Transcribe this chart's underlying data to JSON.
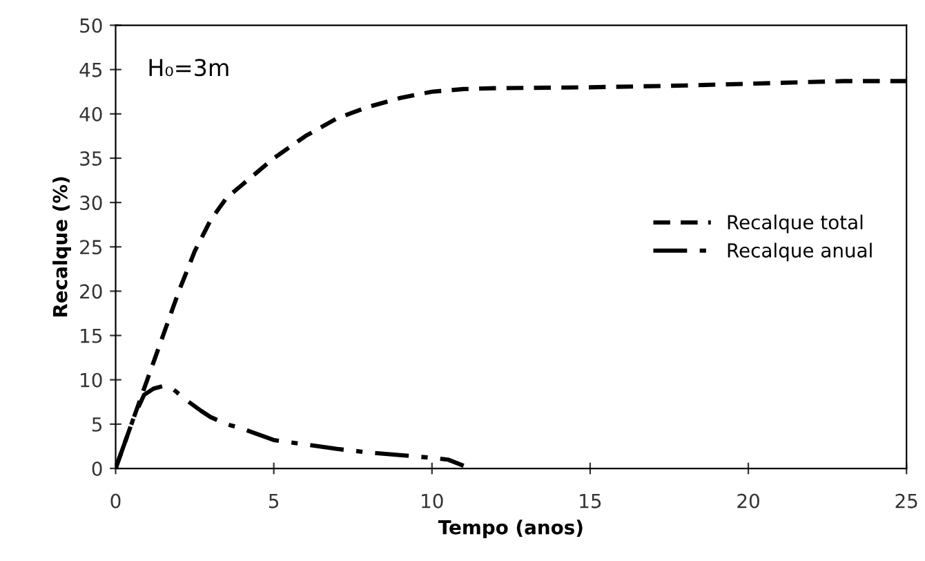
{
  "chart_data": {
    "type": "line",
    "xlabel": "Tempo (anos)",
    "ylabel": "Recalque (%)",
    "annotations": [
      "H₀=3m"
    ],
    "xlim": [
      0,
      25
    ],
    "xticks": [
      0,
      5,
      10,
      15,
      20,
      25
    ],
    "ylim": [
      0,
      50
    ],
    "yticks": [
      0,
      5,
      10,
      15,
      20,
      25,
      30,
      35,
      40,
      45,
      50
    ],
    "grid": false,
    "legend": "right",
    "marker": "none",
    "series": [
      {
        "name": "Recalque total",
        "color": "#000000",
        "line_style": "dashed",
        "x": [
          0,
          0.5,
          1,
          1.5,
          2,
          2.5,
          3,
          3.5,
          4,
          5,
          6,
          7,
          8,
          9,
          10,
          11,
          12,
          15,
          18,
          20,
          23,
          25
        ],
        "values": [
          0,
          5,
          10,
          15,
          20,
          24.5,
          28,
          30.5,
          32,
          35,
          37.5,
          39.5,
          40.8,
          41.8,
          42.5,
          42.8,
          42.9,
          43,
          43.2,
          43.4,
          43.7,
          43.7
        ]
      },
      {
        "name": "Recalque anual",
        "color": "#000000",
        "line_style": "dashdot",
        "x": [
          0,
          0.3,
          0.6,
          0.9,
          1.2,
          1.5,
          1.8,
          2.2,
          2.7,
          3,
          3.5,
          4,
          5,
          6,
          7,
          8,
          9,
          10,
          10.5,
          11
        ],
        "values": [
          0,
          3,
          6,
          8.3,
          9,
          9.3,
          9,
          7.8,
          6.5,
          5.8,
          5,
          4.5,
          3.2,
          2.7,
          2.2,
          1.8,
          1.5,
          1.2,
          1,
          0.3
        ]
      }
    ]
  }
}
